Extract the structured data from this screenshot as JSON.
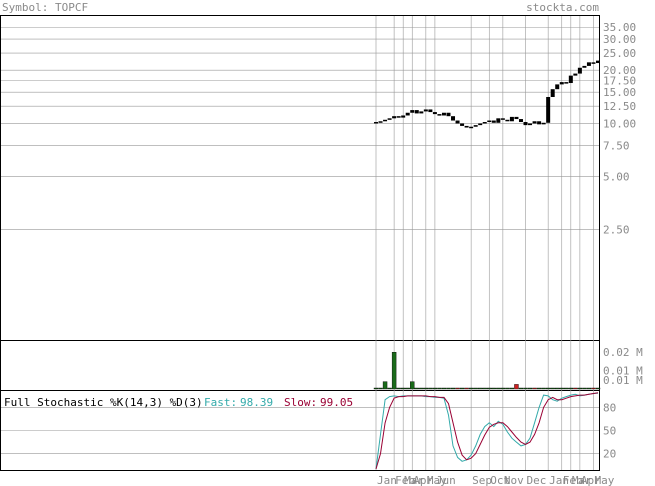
{
  "header": {
    "symbol_label": "Symbol: TOPCF",
    "site": "stockta.com"
  },
  "colors": {
    "fast": "#33aaaa",
    "slow": "#990033",
    "volume_up": "#1a6b1a",
    "volume_down": "#cc2222",
    "grid": "#999999"
  },
  "chart_data": [
    {
      "type": "candlestick",
      "panel": "price",
      "y_scale": "log",
      "ylim": [
        0.6,
        40
      ],
      "yticks": [
        35.0,
        30.0,
        25.0,
        20.0,
        17.5,
        15.0,
        12.5,
        10.0,
        7.5,
        5.0,
        2.5
      ],
      "ytick_labels": [
        "35.00",
        "30.00",
        "25.00",
        "20.00",
        "17.50",
        "15.00",
        "12.50",
        "10.00",
        "7.50",
        "5.00",
        "2.50"
      ],
      "x_labels": [
        "Jan",
        "Feb",
        "Mar",
        "Apr",
        "May",
        "Jun",
        "Sep",
        "Oct",
        "Nov",
        "Dec",
        "Jan",
        "Feb",
        "Mar",
        "Apr",
        "May"
      ],
      "closes": [
        10.1,
        10.2,
        10.4,
        10.6,
        10.9,
        10.7,
        11.0,
        11.4,
        11.8,
        11.3,
        11.6,
        11.9,
        11.5,
        11.2,
        11.0,
        11.4,
        10.9,
        10.3,
        9.9,
        9.6,
        9.4,
        9.5,
        9.7,
        9.9,
        10.1,
        10.3,
        10.0,
        10.6,
        10.4,
        10.2,
        10.8,
        10.5,
        10.1,
        9.7,
        9.9,
        10.2,
        9.8,
        10.0,
        14.0,
        15.5,
        16.5,
        17.0,
        16.8,
        18.5,
        19.0,
        20.5,
        21.0,
        22.0,
        21.8,
        22.5
      ]
    },
    {
      "type": "bar",
      "panel": "volume",
      "ytick_labels": [
        "0.02 M",
        "0.01 M",
        "0.01 M"
      ],
      "ylim": [
        0,
        0.025
      ],
      "values": [
        0.0,
        0.0,
        0.004,
        0.0,
        0.02,
        0.0,
        0.0,
        0.0,
        0.004,
        0.0,
        0.0,
        0.0,
        0.0,
        0.0,
        0.0,
        0.0,
        0.0,
        0.0,
        0.0005,
        0.0,
        0.0005,
        0.0,
        0.0,
        0.0,
        0.0,
        0.0,
        0.0,
        0.0,
        0.0,
        0.0,
        0.0,
        0.0025,
        0.0,
        0.0,
        0.0,
        0.0005,
        0.0,
        0.0,
        0.0,
        0.0,
        0.0,
        0.0,
        0.0,
        0.0,
        0.0005,
        0.0,
        0.0,
        0.0,
        0.0005,
        0.0005
      ],
      "up": [
        true,
        true,
        true,
        true,
        true,
        true,
        true,
        true,
        true,
        true,
        true,
        true,
        true,
        true,
        true,
        true,
        true,
        true,
        false,
        true,
        false,
        true,
        true,
        true,
        true,
        true,
        true,
        true,
        true,
        true,
        true,
        false,
        true,
        true,
        true,
        false,
        true,
        true,
        true,
        true,
        true,
        true,
        true,
        true,
        false,
        true,
        true,
        true,
        false,
        true
      ]
    },
    {
      "type": "line",
      "panel": "stochastic",
      "title": "Full Stochastic %K(14,3) %D(3)",
      "fast_label": "Fast:",
      "fast_value": "98.39",
      "slow_label": "Slow:",
      "slow_value": "99.05",
      "ylim": [
        0,
        100
      ],
      "yticks": [
        80,
        50,
        20
      ],
      "series": [
        {
          "name": "Fast",
          "values": [
            0,
            45,
            90,
            94,
            95,
            94,
            95,
            95,
            95,
            95,
            95,
            94,
            94,
            93,
            93,
            92,
            70,
            30,
            15,
            10,
            12,
            18,
            30,
            45,
            55,
            60,
            55,
            62,
            58,
            48,
            40,
            35,
            30,
            32,
            40,
            60,
            80,
            96,
            95,
            90,
            88,
            92,
            94,
            96,
            97,
            95,
            96,
            97,
            98,
            98.39
          ]
        },
        {
          "name": "Slow",
          "values": [
            0,
            20,
            60,
            80,
            92,
            94,
            94,
            95,
            95,
            95,
            95,
            95,
            94,
            94,
            93,
            93,
            85,
            60,
            35,
            18,
            12,
            14,
            20,
            32,
            44,
            54,
            58,
            60,
            60,
            55,
            48,
            41,
            35,
            32,
            35,
            45,
            60,
            80,
            90,
            93,
            90,
            90,
            92,
            94,
            95,
            96,
            96,
            97,
            98,
            99.05
          ]
        }
      ]
    }
  ]
}
